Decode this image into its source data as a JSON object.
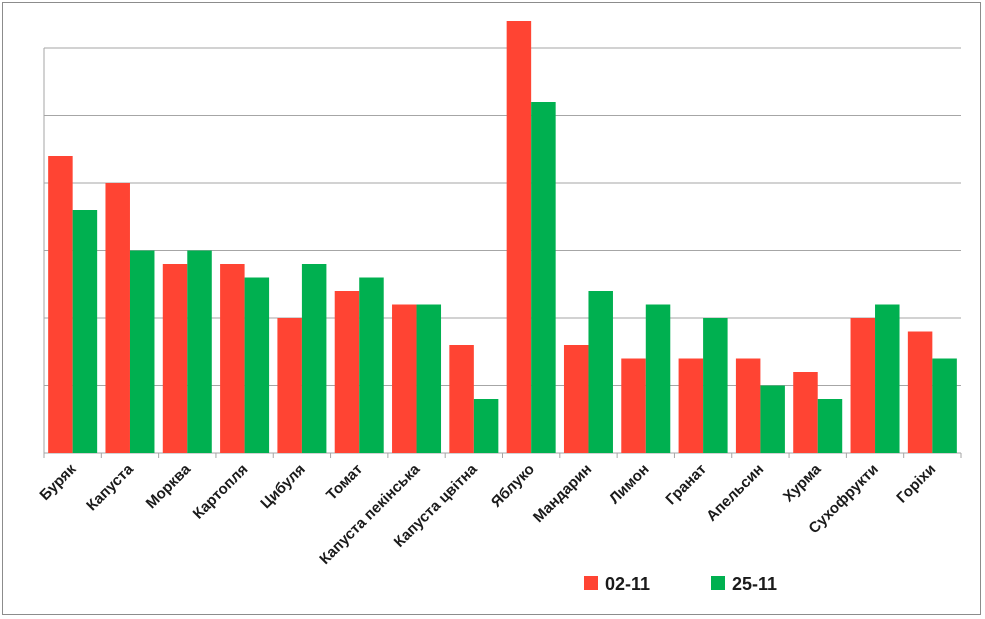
{
  "chart_data": {
    "type": "bar",
    "title": "",
    "xlabel": "",
    "ylabel": "",
    "ylim": [
      0,
      32
    ],
    "y_tick_labels_visible": false,
    "grid": true,
    "legend_position": "bottom-right",
    "categories": [
      "Буряк",
      "Капуста",
      "Морква",
      "Картопля",
      "Цибуля",
      "Томат",
      "Капуста пекінська",
      "Капуста цвітна",
      "Яблуко",
      "Мандарин",
      "Лимон",
      "Гранат",
      "Апельсин",
      "Хурма",
      "Сухофрукти",
      "Горіхи"
    ],
    "series": [
      {
        "name": "02-11",
        "color": "#ff4433",
        "values": [
          22,
          20,
          14,
          14,
          10,
          12,
          11,
          8,
          32,
          8,
          7,
          7,
          7,
          6,
          10,
          9
        ]
      },
      {
        "name": "25-11",
        "color": "#00b050",
        "values": [
          18,
          15,
          15,
          13,
          14,
          13,
          11,
          4,
          26,
          12,
          11,
          10,
          5,
          4,
          11,
          7
        ]
      }
    ]
  }
}
